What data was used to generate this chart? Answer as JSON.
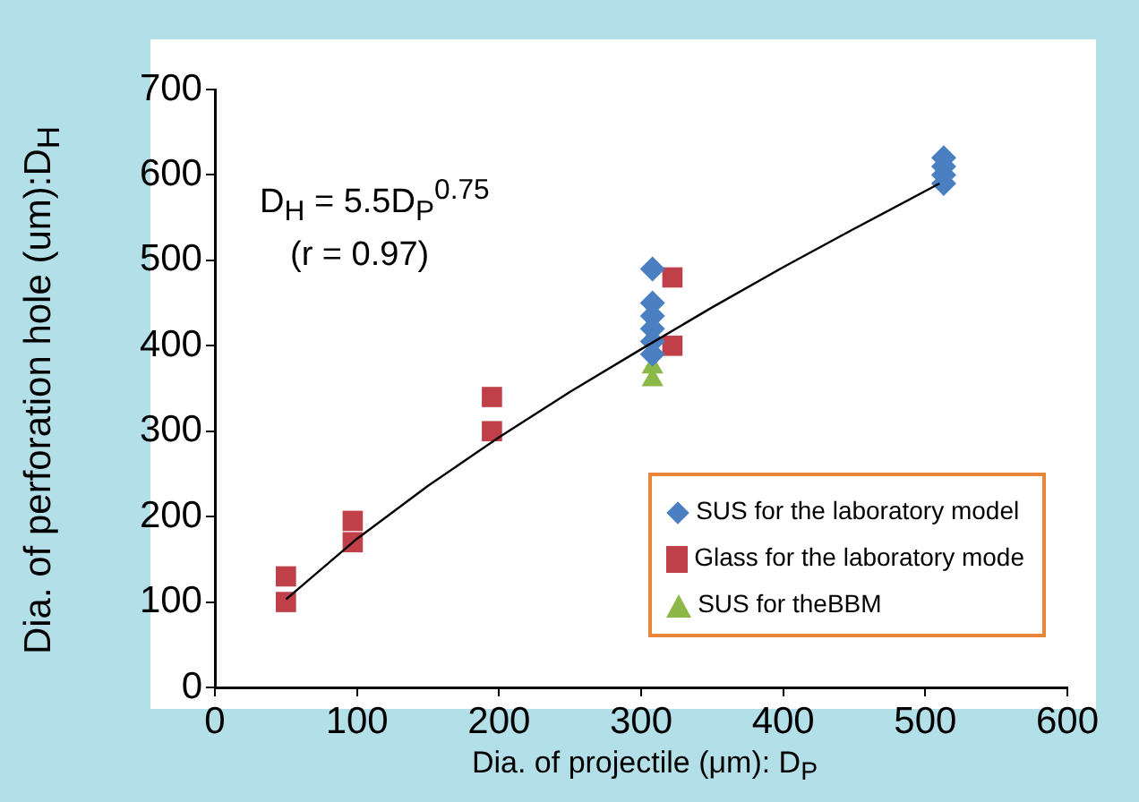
{
  "chart_data": {
    "type": "scatter",
    "xlabel": "Dia. of projectile (μm): D$_{P}$",
    "ylabel": "Dia. of perforation hole (um):D$_{H}$",
    "annotations": [
      "D$_{H}$ = 5.5D$_{P}$$^{0.75}$",
      "(r = 0.97)"
    ],
    "xlim": [
      0,
      600
    ],
    "xticks": [
      0,
      100,
      200,
      300,
      400,
      500,
      600
    ],
    "ylim": [
      0,
      700
    ],
    "yticks": [
      0,
      100,
      200,
      300,
      400,
      500,
      600,
      700
    ],
    "grid": false,
    "legend": "bottom right",
    "series": [
      {
        "name": "SUS for the laboratory model",
        "color": "#4a7fc1",
        "marker": "diamond",
        "x": [
          308,
          308,
          308,
          308,
          308,
          308,
          513,
          513,
          513,
          513
        ],
        "values": [
          490,
          450,
          435,
          420,
          405,
          390,
          620,
          610,
          600,
          590
        ]
      },
      {
        "name": "Glass for the laboratory mode",
        "color": "#c0404a",
        "marker": "square",
        "x": [
          50,
          50,
          97,
          97,
          195,
          195,
          322,
          322
        ],
        "values": [
          100,
          130,
          170,
          195,
          300,
          340,
          400,
          480
        ]
      },
      {
        "name": "SUS for theBBM",
        "color": "#8cb848",
        "marker": "triangle",
        "x": [
          308,
          308
        ],
        "values": [
          360,
          375
        ]
      },
      {
        "type": "line",
        "color": "#000000",
        "marker": "none",
        "line_style": "solid",
        "x": [
          50,
          100,
          150,
          200,
          250,
          300,
          350,
          400,
          450,
          510
        ],
        "values": [
          103,
          174,
          236,
          293,
          346,
          396,
          445,
          492,
          537,
          590
        ]
      }
    ]
  }
}
